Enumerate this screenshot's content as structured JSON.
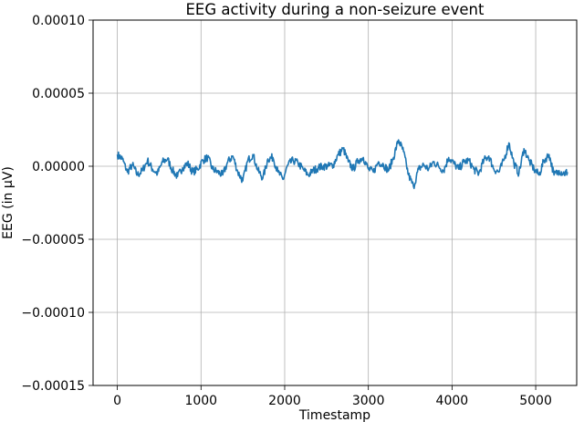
{
  "chart_data": {
    "type": "line",
    "title": "EEG activity during a non-seizure event",
    "xlabel": "Timestamp",
    "ylabel": "EEG (in µV)",
    "xlim": [
      -290,
      5490
    ],
    "ylim": [
      -0.00015,
      0.0001
    ],
    "xticks": [
      0,
      1000,
      2000,
      3000,
      4000,
      5000
    ],
    "yticks": [
      0.0001,
      5e-05,
      0.0,
      -5e-05,
      -0.0001,
      -0.00015
    ],
    "xtick_labels": [
      "0",
      "1000",
      "2000",
      "3000",
      "4000",
      "5000"
    ],
    "ytick_labels": [
      "0.00010",
      "0.00005",
      "0.00000",
      "−0.00005",
      "−0.00010",
      "−0.00015"
    ],
    "grid": true,
    "color": "#1f77b4",
    "series": [
      {
        "x": [
          0,
          60,
          120,
          180,
          240,
          300,
          360,
          420,
          480,
          540,
          600,
          660,
          720,
          780,
          840,
          900,
          960,
          1020,
          1080,
          1140,
          1200,
          1260,
          1320,
          1380,
          1440,
          1500,
          1560,
          1620,
          1680,
          1740,
          1800,
          1860,
          1920,
          1980,
          2040,
          2100,
          2160,
          2220,
          2280,
          2340,
          2400,
          2460,
          2520,
          2580,
          2640,
          2700,
          2760,
          2820,
          2880,
          2940,
          3000,
          3060,
          3120,
          3180,
          3240,
          3300,
          3360,
          3420,
          3480,
          3540,
          3600,
          3660,
          3720,
          3780,
          3840,
          3900,
          3960,
          4020,
          4080,
          4140,
          4200,
          4260,
          4320,
          4380,
          4440,
          4500,
          4560,
          4620,
          4680,
          4740,
          4800,
          4860,
          4920,
          4980,
          5040,
          5100,
          5160,
          5220,
          5280,
          5340,
          5380
        ],
        "y": [
          8e-06,
          5e-06,
          -4e-06,
          1e-06,
          -6e-06,
          -3e-06,
          4e-06,
          -2e-06,
          -5e-06,
          3e-06,
          5e-06,
          -3e-06,
          -7e-06,
          -1e-06,
          2e-06,
          -4e-06,
          -2e-06,
          4e-06,
          6e-06,
          -2e-06,
          -4e-06,
          -6e-06,
          3e-06,
          7e-06,
          -4e-06,
          -1e-05,
          4e-06,
          8e-06,
          -3e-06,
          -8e-06,
          5e-06,
          6e-06,
          -4e-06,
          -9e-06,
          1e-06,
          4e-06,
          2e-06,
          -2e-06,
          -6e-06,
          -3e-06,
          -1e-06,
          0.0,
          0.0,
          1e-06,
          8e-06,
          1.2e-05,
          3e-06,
          -2e-06,
          4e-06,
          6e-06,
          -2e-06,
          -4e-06,
          3e-06,
          1e-06,
          -3e-06,
          6e-06,
          1.8e-05,
          1e-05,
          -6e-06,
          -1.4e-05,
          -2e-06,
          1e-06,
          -2e-06,
          3e-06,
          0.0,
          -3e-06,
          6e-06,
          2e-06,
          -2e-06,
          3e-06,
          4e-06,
          -2e-06,
          -5e-06,
          4e-06,
          7e-06,
          -2e-06,
          -4e-06,
          4e-06,
          1.6e-05,
          2e-06,
          -5e-06,
          1.2e-05,
          4e-06,
          -2e-06,
          -6e-06,
          4e-06,
          8e-06,
          -6e-06,
          -3e-06,
          -5e-06,
          -4e-06
        ]
      }
    ]
  }
}
